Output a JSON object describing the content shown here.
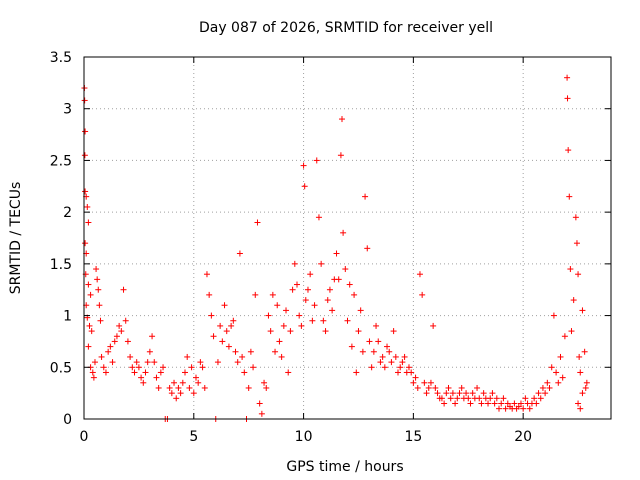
{
  "chart_data": {
    "type": "scatter",
    "title": "Day 087 of 2026, SRMTID for receiver yell",
    "xlabel": "GPS time / hours",
    "ylabel": "SRMTID / TECUs",
    "xlim": [
      0,
      24
    ],
    "ylim": [
      0,
      3.5
    ],
    "x_ticks": [
      0,
      5,
      10,
      15,
      20
    ],
    "x_tick_labels": [
      "0",
      "5",
      "10",
      "15",
      "20"
    ],
    "y_ticks": [
      0,
      0.5,
      1,
      1.5,
      2,
      2.5,
      3,
      3.5
    ],
    "y_tick_labels": [
      "0",
      "0.5",
      "1",
      "1.5",
      "2",
      "2.5",
      "3",
      "3.5"
    ],
    "grid": true,
    "marker": "+",
    "series": [
      {
        "name": "SRMTID",
        "color": "#ff0000",
        "points": [
          [
            0.02,
            3.2
          ],
          [
            0.03,
            3.08
          ],
          [
            0.05,
            2.78
          ],
          [
            0.04,
            2.55
          ],
          [
            0.05,
            2.2
          ],
          [
            0.1,
            2.15
          ],
          [
            0.15,
            2.05
          ],
          [
            0.2,
            1.9
          ],
          [
            0.05,
            1.7
          ],
          [
            0.1,
            1.6
          ],
          [
            0.08,
            1.4
          ],
          [
            0.2,
            1.3
          ],
          [
            0.3,
            1.2
          ],
          [
            0.1,
            1.1
          ],
          [
            0.15,
            0.98
          ],
          [
            0.25,
            0.9
          ],
          [
            0.35,
            0.85
          ],
          [
            0.2,
            0.7
          ],
          [
            0.3,
            0.5
          ],
          [
            0.4,
            0.45
          ],
          [
            0.45,
            0.4
          ],
          [
            0.5,
            0.55
          ],
          [
            0.55,
            1.45
          ],
          [
            0.6,
            1.35
          ],
          [
            0.65,
            1.25
          ],
          [
            0.7,
            1.1
          ],
          [
            0.75,
            0.95
          ],
          [
            0.8,
            0.6
          ],
          [
            0.9,
            0.5
          ],
          [
            1.0,
            0.45
          ],
          [
            1.1,
            0.65
          ],
          [
            1.2,
            0.7
          ],
          [
            1.3,
            0.55
          ],
          [
            1.4,
            0.75
          ],
          [
            1.5,
            0.8
          ],
          [
            1.6,
            0.9
          ],
          [
            1.7,
            0.85
          ],
          [
            1.8,
            1.25
          ],
          [
            1.9,
            0.95
          ],
          [
            2.0,
            0.75
          ],
          [
            2.1,
            0.6
          ],
          [
            2.2,
            0.5
          ],
          [
            2.3,
            0.45
          ],
          [
            2.4,
            0.55
          ],
          [
            2.5,
            0.5
          ],
          [
            2.6,
            0.4
          ],
          [
            2.7,
            0.35
          ],
          [
            2.8,
            0.45
          ],
          [
            2.9,
            0.55
          ],
          [
            3.0,
            0.65
          ],
          [
            3.1,
            0.8
          ],
          [
            3.2,
            0.55
          ],
          [
            3.3,
            0.4
          ],
          [
            3.4,
            0.3
          ],
          [
            3.5,
            0.45
          ],
          [
            3.6,
            0.5
          ],
          [
            3.7,
            0.0
          ],
          [
            3.8,
            0.0
          ],
          [
            3.9,
            0.3
          ],
          [
            4.0,
            0.25
          ],
          [
            4.1,
            0.35
          ],
          [
            4.2,
            0.2
          ],
          [
            4.3,
            0.3
          ],
          [
            4.4,
            0.25
          ],
          [
            4.5,
            0.35
          ],
          [
            4.6,
            0.45
          ],
          [
            4.7,
            0.6
          ],
          [
            4.8,
            0.3
          ],
          [
            4.9,
            0.5
          ],
          [
            5.0,
            0.25
          ],
          [
            5.1,
            0.4
          ],
          [
            5.2,
            0.35
          ],
          [
            5.3,
            0.55
          ],
          [
            5.4,
            0.5
          ],
          [
            5.5,
            0.3
          ],
          [
            5.6,
            1.4
          ],
          [
            5.7,
            1.2
          ],
          [
            5.8,
            1.0
          ],
          [
            5.9,
            0.8
          ],
          [
            6.0,
            0.0
          ],
          [
            6.1,
            0.55
          ],
          [
            6.2,
            0.9
          ],
          [
            6.3,
            0.75
          ],
          [
            6.4,
            1.1
          ],
          [
            6.5,
            0.85
          ],
          [
            6.6,
            0.7
          ],
          [
            6.7,
            0.9
          ],
          [
            6.8,
            0.95
          ],
          [
            6.9,
            0.65
          ],
          [
            7.0,
            0.55
          ],
          [
            7.1,
            1.6
          ],
          [
            7.2,
            0.6
          ],
          [
            7.3,
            0.45
          ],
          [
            7.4,
            0.0
          ],
          [
            7.5,
            0.3
          ],
          [
            7.6,
            0.65
          ],
          [
            7.7,
            0.5
          ],
          [
            7.8,
            1.2
          ],
          [
            7.9,
            1.9
          ],
          [
            8.0,
            0.15
          ],
          [
            8.1,
            0.05
          ],
          [
            8.2,
            0.35
          ],
          [
            8.3,
            0.3
          ],
          [
            8.4,
            1.0
          ],
          [
            8.5,
            0.85
          ],
          [
            8.6,
            1.2
          ],
          [
            8.7,
            0.65
          ],
          [
            8.8,
            1.1
          ],
          [
            8.9,
            0.75
          ],
          [
            9.0,
            0.6
          ],
          [
            9.1,
            0.9
          ],
          [
            9.2,
            1.05
          ],
          [
            9.3,
            0.45
          ],
          [
            9.4,
            0.85
          ],
          [
            9.5,
            1.25
          ],
          [
            9.6,
            1.5
          ],
          [
            9.7,
            1.3
          ],
          [
            9.8,
            1.0
          ],
          [
            9.9,
            0.9
          ],
          [
            10.0,
            2.45
          ],
          [
            10.05,
            2.25
          ],
          [
            10.1,
            1.15
          ],
          [
            10.2,
            1.25
          ],
          [
            10.3,
            1.4
          ],
          [
            10.4,
            0.95
          ],
          [
            10.5,
            1.1
          ],
          [
            10.6,
            2.5
          ],
          [
            10.7,
            1.95
          ],
          [
            10.8,
            1.5
          ],
          [
            10.9,
            0.95
          ],
          [
            11.0,
            0.85
          ],
          [
            11.1,
            1.15
          ],
          [
            11.2,
            1.25
          ],
          [
            11.3,
            1.05
          ],
          [
            11.4,
            1.35
          ],
          [
            11.5,
            1.6
          ],
          [
            11.6,
            1.35
          ],
          [
            11.7,
            2.55
          ],
          [
            11.75,
            2.9
          ],
          [
            11.8,
            1.8
          ],
          [
            11.9,
            1.45
          ],
          [
            12.0,
            0.95
          ],
          [
            12.1,
            1.3
          ],
          [
            12.2,
            0.7
          ],
          [
            12.3,
            1.2
          ],
          [
            12.4,
            0.45
          ],
          [
            12.5,
            0.85
          ],
          [
            12.6,
            1.05
          ],
          [
            12.7,
            0.65
          ],
          [
            12.8,
            2.15
          ],
          [
            12.9,
            1.65
          ],
          [
            13.0,
            0.75
          ],
          [
            13.1,
            0.5
          ],
          [
            13.2,
            0.65
          ],
          [
            13.3,
            0.9
          ],
          [
            13.4,
            0.75
          ],
          [
            13.5,
            0.55
          ],
          [
            13.6,
            0.6
          ],
          [
            13.7,
            0.5
          ],
          [
            13.8,
            0.7
          ],
          [
            13.9,
            0.65
          ],
          [
            14.0,
            0.55
          ],
          [
            14.1,
            0.85
          ],
          [
            14.2,
            0.6
          ],
          [
            14.3,
            0.45
          ],
          [
            14.4,
            0.5
          ],
          [
            14.5,
            0.55
          ],
          [
            14.6,
            0.6
          ],
          [
            14.7,
            0.45
          ],
          [
            14.8,
            0.5
          ],
          [
            14.9,
            0.45
          ],
          [
            15.0,
            0.35
          ],
          [
            15.1,
            0.4
          ],
          [
            15.2,
            0.3
          ],
          [
            15.3,
            1.4
          ],
          [
            15.4,
            1.2
          ],
          [
            15.5,
            0.35
          ],
          [
            15.6,
            0.25
          ],
          [
            15.7,
            0.3
          ],
          [
            15.8,
            0.35
          ],
          [
            15.9,
            0.9
          ],
          [
            16.0,
            0.3
          ],
          [
            16.1,
            0.25
          ],
          [
            16.2,
            0.2
          ],
          [
            16.3,
            0.2
          ],
          [
            16.4,
            0.15
          ],
          [
            16.5,
            0.25
          ],
          [
            16.6,
            0.3
          ],
          [
            16.7,
            0.2
          ],
          [
            16.8,
            0.25
          ],
          [
            16.9,
            0.15
          ],
          [
            17.0,
            0.2
          ],
          [
            17.1,
            0.25
          ],
          [
            17.2,
            0.3
          ],
          [
            17.3,
            0.2
          ],
          [
            17.4,
            0.25
          ],
          [
            17.5,
            0.2
          ],
          [
            17.6,
            0.15
          ],
          [
            17.7,
            0.25
          ],
          [
            17.8,
            0.2
          ],
          [
            17.9,
            0.3
          ],
          [
            18.0,
            0.2
          ],
          [
            18.1,
            0.15
          ],
          [
            18.2,
            0.25
          ],
          [
            18.3,
            0.2
          ],
          [
            18.4,
            0.15
          ],
          [
            18.5,
            0.2
          ],
          [
            18.6,
            0.25
          ],
          [
            18.7,
            0.15
          ],
          [
            18.8,
            0.2
          ],
          [
            18.9,
            0.1
          ],
          [
            19.0,
            0.15
          ],
          [
            19.1,
            0.2
          ],
          [
            19.2,
            0.1
          ],
          [
            19.3,
            0.15
          ],
          [
            19.4,
            0.12
          ],
          [
            19.5,
            0.1
          ],
          [
            19.6,
            0.15
          ],
          [
            19.7,
            0.1
          ],
          [
            19.8,
            0.12
          ],
          [
            19.9,
            0.15
          ],
          [
            20.0,
            0.1
          ],
          [
            20.1,
            0.2
          ],
          [
            20.2,
            0.15
          ],
          [
            20.3,
            0.1
          ],
          [
            20.4,
            0.15
          ],
          [
            20.5,
            0.2
          ],
          [
            20.6,
            0.15
          ],
          [
            20.7,
            0.25
          ],
          [
            20.8,
            0.2
          ],
          [
            20.9,
            0.3
          ],
          [
            21.0,
            0.25
          ],
          [
            21.1,
            0.35
          ],
          [
            21.2,
            0.3
          ],
          [
            21.3,
            0.5
          ],
          [
            21.4,
            1.0
          ],
          [
            21.5,
            0.45
          ],
          [
            21.6,
            0.35
          ],
          [
            21.7,
            0.6
          ],
          [
            21.8,
            0.4
          ],
          [
            21.9,
            0.8
          ],
          [
            22.0,
            3.3
          ],
          [
            22.02,
            3.1
          ],
          [
            22.05,
            2.6
          ],
          [
            22.1,
            2.15
          ],
          [
            22.15,
            1.45
          ],
          [
            22.2,
            0.85
          ],
          [
            22.3,
            1.15
          ],
          [
            22.4,
            1.95
          ],
          [
            22.45,
            1.7
          ],
          [
            22.5,
            1.4
          ],
          [
            22.55,
            0.6
          ],
          [
            22.6,
            0.45
          ],
          [
            22.7,
            1.05
          ],
          [
            22.8,
            0.65
          ],
          [
            22.9,
            0.35
          ],
          [
            22.5,
            0.15
          ],
          [
            22.6,
            0.1
          ],
          [
            22.7,
            0.25
          ],
          [
            22.85,
            0.3
          ]
        ]
      }
    ]
  }
}
